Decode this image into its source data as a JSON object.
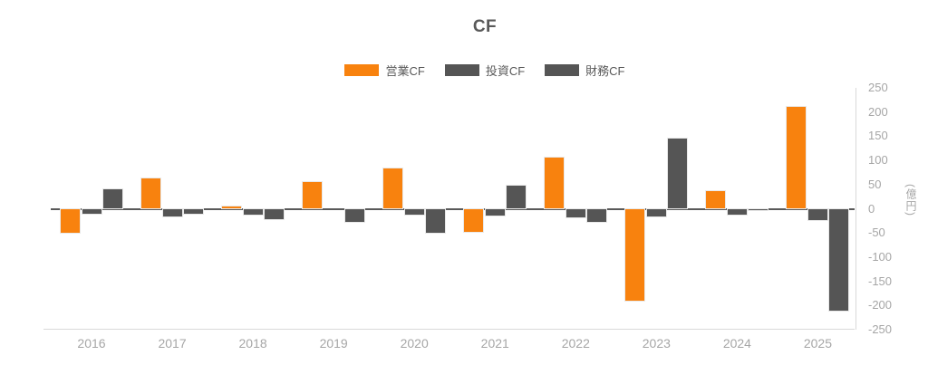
{
  "title": "CF",
  "colors": {
    "operating": "#F8820E",
    "investing": "#555555",
    "financing": "#555555",
    "zero_line": "#595959",
    "axis_line": "#D9D9D9",
    "tick_text": "#A6A6A6",
    "title_text": "#595959",
    "legend_text": "#595959"
  },
  "y_axis": {
    "ticks": [
      250,
      200,
      150,
      100,
      50,
      0,
      -50,
      -100,
      -150,
      -200,
      -250
    ],
    "unit_label": "(億円)"
  },
  "chart_data": {
    "type": "bar",
    "title": "CF",
    "categories": [
      "2016",
      "2017",
      "2018",
      "2019",
      "2020",
      "2021",
      "2022",
      "2023",
      "2024",
      "2025"
    ],
    "series": [
      {
        "key": "operating-cf",
        "name": "営業CF",
        "color": "#F8820E",
        "values": [
          -50,
          63,
          5,
          55,
          84,
          -47,
          106,
          -190,
          36,
          210
        ]
      },
      {
        "key": "investing-cf",
        "name": "投資CF",
        "color": "#555555",
        "values": [
          -10,
          -15,
          -13,
          0,
          -12,
          -14,
          -18,
          -15,
          -12,
          -24
        ]
      },
      {
        "key": "financing-cf",
        "name": "財務CF",
        "color": "#555555",
        "values": [
          40,
          -11,
          -21,
          -28,
          -50,
          47,
          -28,
          146,
          -3,
          -210
        ]
      }
    ],
    "xlabel": "",
    "ylabel": "(億円)",
    "ylim": [
      -250,
      250
    ],
    "grid": false,
    "legend_position": "top-center"
  }
}
